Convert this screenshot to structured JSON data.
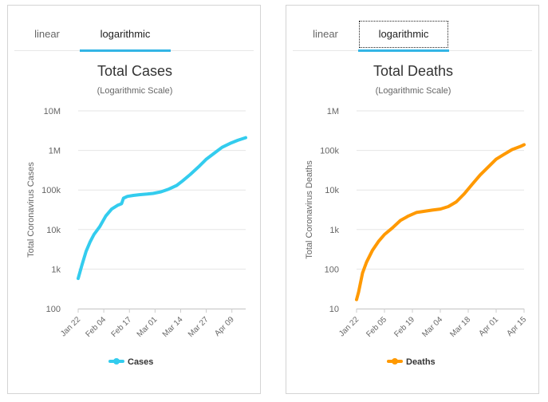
{
  "panels": [
    {
      "tabs": [
        "linear",
        "logarithmic"
      ],
      "active_tab": "logarithmic",
      "color": "#33ccee"
    },
    {
      "tabs": [
        "linear",
        "logarithmic"
      ],
      "active_tab": "logarithmic",
      "color": "#ff9900"
    }
  ],
  "chart_data": [
    {
      "type": "line",
      "title": "Total Cases",
      "subtitle": "(Logarithmic Scale)",
      "ylabel": "Total Coronavirus Cases",
      "yscale": "log",
      "yticks": [
        100,
        1000,
        10000,
        100000,
        1000000,
        10000000
      ],
      "ytick_labels": [
        "100",
        "1k",
        "10k",
        "100k",
        "1M",
        "10M"
      ],
      "x_ticks": [
        {
          "day": 0,
          "label": "Jan 22"
        },
        {
          "day": 13,
          "label": "Feb 04"
        },
        {
          "day": 26,
          "label": "Feb 17"
        },
        {
          "day": 39,
          "label": "Mar 01"
        },
        {
          "day": 52,
          "label": "Mar 14"
        },
        {
          "day": 65,
          "label": "Mar 27"
        },
        {
          "day": 78,
          "label": "Apr 09"
        }
      ],
      "x_range": [
        0,
        85
      ],
      "legend": "Cases",
      "series": [
        {
          "name": "Cases",
          "color": "#33ccee",
          "x": [
            0,
            2,
            4,
            6,
            8,
            11,
            14,
            17,
            20,
            22,
            23,
            25,
            28,
            31,
            35,
            38,
            42,
            46,
            50,
            53,
            57,
            61,
            65,
            69,
            73,
            77,
            81,
            85
          ],
          "y": [
            580,
            1300,
            2800,
            4800,
            7500,
            12000,
            22000,
            33000,
            41000,
            45000,
            62000,
            69000,
            73000,
            76000,
            79000,
            82000,
            90000,
            105000,
            130000,
            170000,
            250000,
            380000,
            600000,
            850000,
            1200000,
            1500000,
            1800000,
            2100000
          ]
        }
      ]
    },
    {
      "type": "line",
      "title": "Total Deaths",
      "subtitle": "(Logarithmic Scale)",
      "ylabel": "Total Coronavirus Deaths",
      "yscale": "log",
      "yticks": [
        10,
        100,
        1000,
        10000,
        100000,
        1000000
      ],
      "ytick_labels": [
        "10",
        "100",
        "1k",
        "10k",
        "100k",
        "1M"
      ],
      "x_ticks": [
        {
          "day": 0,
          "label": "Jan 22"
        },
        {
          "day": 14,
          "label": "Feb 05"
        },
        {
          "day": 28,
          "label": "Feb 19"
        },
        {
          "day": 42,
          "label": "Mar 04"
        },
        {
          "day": 56,
          "label": "Mar 18"
        },
        {
          "day": 70,
          "label": "Apr 01"
        },
        {
          "day": 84,
          "label": "Apr 15"
        }
      ],
      "x_range": [
        0,
        84
      ],
      "legend": "Deaths",
      "series": [
        {
          "name": "Deaths",
          "color": "#ff9900",
          "x": [
            0,
            1,
            3,
            5,
            8,
            11,
            14,
            18,
            22,
            26,
            30,
            34,
            38,
            42,
            46,
            50,
            54,
            58,
            62,
            66,
            70,
            74,
            78,
            82,
            84
          ],
          "y": [
            17,
            26,
            80,
            150,
            300,
            500,
            750,
            1100,
            1700,
            2200,
            2700,
            2900,
            3100,
            3300,
            3800,
            5000,
            8000,
            14000,
            24000,
            38000,
            60000,
            80000,
            105000,
            125000,
            140000
          ]
        }
      ]
    }
  ]
}
